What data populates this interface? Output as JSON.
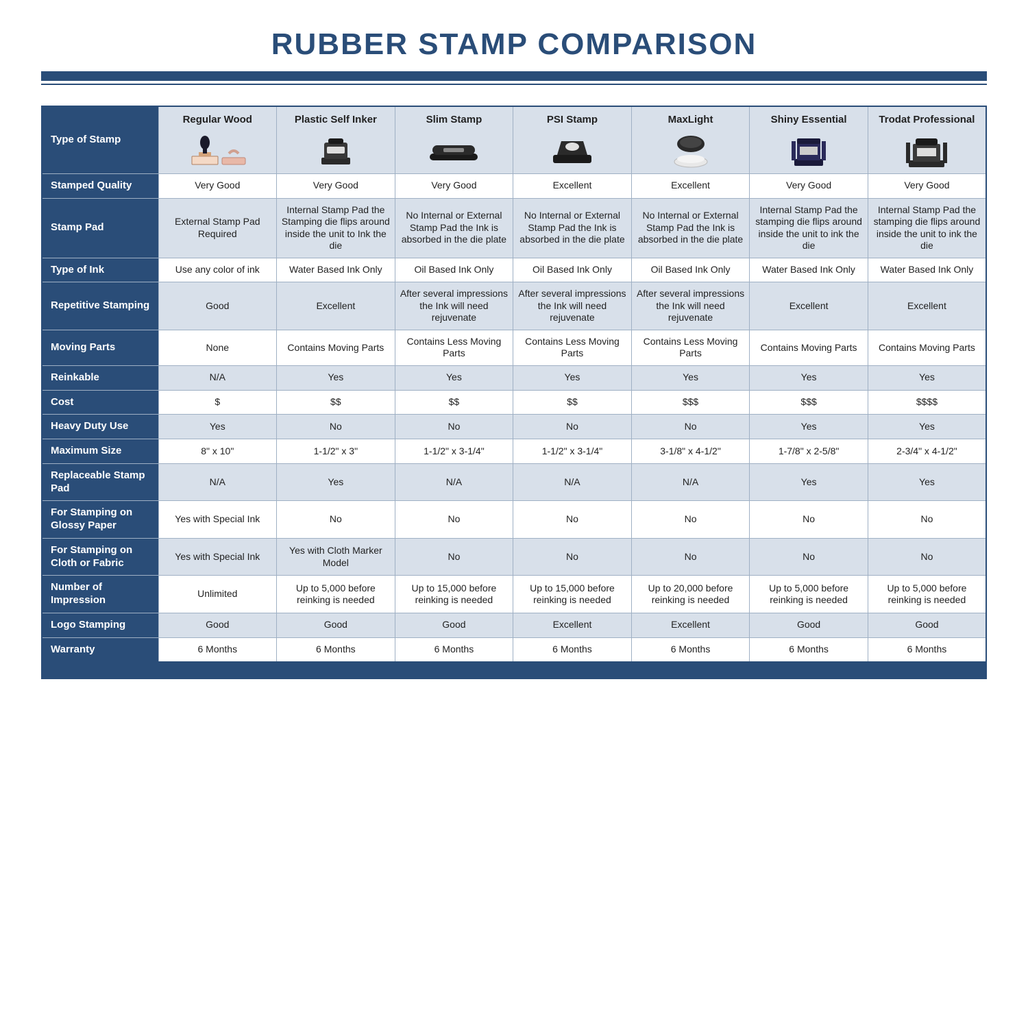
{
  "title": "RUBBER STAMP COMPARISON",
  "colors": {
    "brand": "#2a4d78",
    "row_shade": "#d8e0ea",
    "border": "#9fb0c4",
    "bg": "#ffffff",
    "text": "#222222",
    "header_text": "#ffffff"
  },
  "columns": [
    "Regular Wood",
    "Plastic Self Inker",
    "Slim Stamp",
    "PSI Stamp",
    "MaxLight",
    "Shiny Essential",
    "Trodat Professional"
  ],
  "rows": [
    {
      "label": "Type of Stamp",
      "shade": true,
      "is_image_row": true
    },
    {
      "label": "Stamped Quality",
      "shade": false,
      "cells": [
        "Very Good",
        "Very Good",
        "Very Good",
        "Excellent",
        "Excellent",
        "Very Good",
        "Very Good"
      ]
    },
    {
      "label": "Stamp Pad",
      "shade": true,
      "cells": [
        "External Stamp Pad Required",
        "Internal Stamp Pad the Stamping die flips around inside the unit to Ink the die",
        "No Internal or External Stamp Pad the Ink is absorbed in the die plate",
        "No Internal or External Stamp Pad the Ink is absorbed in the die plate",
        "No Internal or External Stamp Pad the Ink is absorbed in the die plate",
        "Internal Stamp Pad the stamping die flips around inside the unit to ink the die",
        "Internal Stamp Pad the stamping die flips around inside the unit to ink the die"
      ]
    },
    {
      "label": "Type of Ink",
      "shade": false,
      "cells": [
        "Use any color of ink",
        "Water Based Ink Only",
        "Oil Based Ink Only",
        "Oil Based Ink Only",
        "Oil Based Ink Only",
        "Water Based Ink Only",
        "Water Based Ink Only"
      ]
    },
    {
      "label": "Repetitive Stamping",
      "shade": true,
      "cells": [
        "Good",
        "Excellent",
        "After several impressions the Ink will need rejuvenate",
        "After several impressions the Ink will need rejuvenate",
        "After several impressions the Ink will need rejuvenate",
        "Excellent",
        "Excellent"
      ]
    },
    {
      "label": "Moving Parts",
      "shade": false,
      "cells": [
        "None",
        "Contains Moving Parts",
        "Contains Less Moving Parts",
        "Contains Less Moving Parts",
        "Contains Less Moving Parts",
        "Contains Moving Parts",
        "Contains Moving Parts"
      ]
    },
    {
      "label": "Reinkable",
      "shade": true,
      "cells": [
        "N/A",
        "Yes",
        "Yes",
        "Yes",
        "Yes",
        "Yes",
        "Yes"
      ]
    },
    {
      "label": "Cost",
      "shade": false,
      "cells": [
        "$",
        "$$",
        "$$",
        "$$",
        "$$$",
        "$$$",
        "$$$$"
      ]
    },
    {
      "label": "Heavy Duty Use",
      "shade": true,
      "cells": [
        "Yes",
        "No",
        "No",
        "No",
        "No",
        "Yes",
        "Yes"
      ]
    },
    {
      "label": "Maximum Size",
      "shade": false,
      "cells": [
        "8\" x 10\"",
        "1-1/2\" x 3\"",
        "1-1/2\" x 3-1/4\"",
        "1-1/2\" x 3-1/4\"",
        "3-1/8\" x 4-1/2\"",
        "1-7/8\" x 2-5/8\"",
        "2-3/4\" x 4-1/2\""
      ]
    },
    {
      "label": "Replaceable Stamp Pad",
      "shade": true,
      "cells": [
        "N/A",
        "Yes",
        "N/A",
        "N/A",
        "N/A",
        "Yes",
        "Yes"
      ]
    },
    {
      "label": "For Stamping on Glossy Paper",
      "shade": false,
      "cells": [
        "Yes with Special Ink",
        "No",
        "No",
        "No",
        "No",
        "No",
        "No"
      ]
    },
    {
      "label": "For Stamping on Cloth or Fabric",
      "shade": true,
      "cells": [
        "Yes with Special Ink",
        "Yes with Cloth Marker Model",
        "No",
        "No",
        "No",
        "No",
        "No"
      ]
    },
    {
      "label": "Number of Impression",
      "shade": false,
      "cells": [
        "Unlimited",
        "Up to 5,000 before reinking is needed",
        "Up to 15,000 before reinking is needed",
        "Up to 15,000 before reinking is needed",
        "Up to 20,000 before reinking is needed",
        "Up to 5,000 before reinking is needed",
        "Up to 5,000 before reinking is needed"
      ]
    },
    {
      "label": "Logo Stamping",
      "shade": true,
      "cells": [
        "Good",
        "Good",
        "Good",
        "Excellent",
        "Excellent",
        "Good",
        "Good"
      ]
    },
    {
      "label": "Warranty",
      "shade": false,
      "cells": [
        "6 Months",
        "6 Months",
        "6 Months",
        "6 Months",
        "6 Months",
        "6 Months",
        "6 Months"
      ]
    }
  ],
  "stamp_icons": [
    {
      "name": "wood-stamp-icon"
    },
    {
      "name": "self-inker-icon"
    },
    {
      "name": "slim-stamp-icon"
    },
    {
      "name": "psi-stamp-icon"
    },
    {
      "name": "maxlight-icon"
    },
    {
      "name": "shiny-essential-icon"
    },
    {
      "name": "trodat-professional-icon"
    }
  ]
}
